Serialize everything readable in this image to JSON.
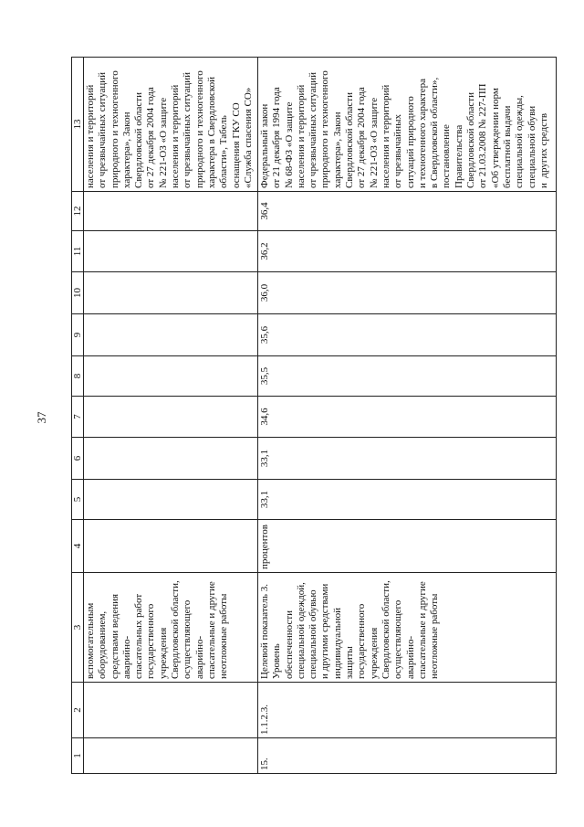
{
  "page_number": "37",
  "table": {
    "headers": [
      "1",
      "2",
      "3",
      "4",
      "5",
      "6",
      "7",
      "8",
      "9",
      "10",
      "11",
      "12",
      "13"
    ],
    "rows": [
      {
        "c1": "",
        "c2": "",
        "c3": "вспомогательным\nоборудованием,\nсредствами ведения\nаварийно-\nспасательных работ\nгосударственного\nучреждения\nСвердловской области,\nосуществляющего\nаварийно-\nспасательные и другие\nнеотложные работы",
        "c4": "",
        "c5": "",
        "c6": "",
        "c7": "",
        "c8": "",
        "c9": "",
        "c10": "",
        "c11": "",
        "c12": "",
        "c13": "населения и территорий\nот чрезвычайных ситуаций\nприродного и техногенного\nхарактера», Закон\nСвердловской области\nот 27 декабря 2004 года\n№ 221-ОЗ «О защите\nнаселения и территорий\nот чрезвычайных ситуаций\nприродного и техногенного\nхарактера в Свердловской\nобласти», Табель\nоснащения ГКУ СО\n«Служба спасения СО»"
      },
      {
        "c1": "15.",
        "c2": "1.1.2.3.",
        "c3": "Целевой показатель 3.\nУровень\nобеспеченности\nспециальной одеждой,\nспециальной обувью\nи другими средствами\nиндивидуальной\nзащиты\nгосударственного\nучреждения\nСвердловской области,\nосуществляющего\nаварийно-\nспасательные и другие\nнеотложные работы",
        "c4": "процентов",
        "c5": "33,1",
        "c6": "33,1",
        "c7": "34,6",
        "c8": "35,5",
        "c9": "35,6",
        "c10": "36,0",
        "c11": "36,2",
        "c12": "36,4",
        "c13": "Федеральный закон\nот 21 декабря 1994 года\n№ 68-ФЗ «О защите\nнаселения и территорий\nот чрезвычайных ситуаций\nприродного и техногенного\nхарактера», Закон\nСвердловской области\nот 27 декабря 2004 года\n№ 221-ОЗ «О защите\nнаселения и территорий\nот чрезвычайных\nситуаций природного\nи техногенного характера\nв Свердловской области»,\nпостановление\nПравительства\nСвердловской области\nот 21.03.2008 № 227-ПП\n«Об утверждении норм\nбесплатной выдачи\nспециальной одежды,\nспециальной обуви\nи  других средств"
      }
    ]
  }
}
